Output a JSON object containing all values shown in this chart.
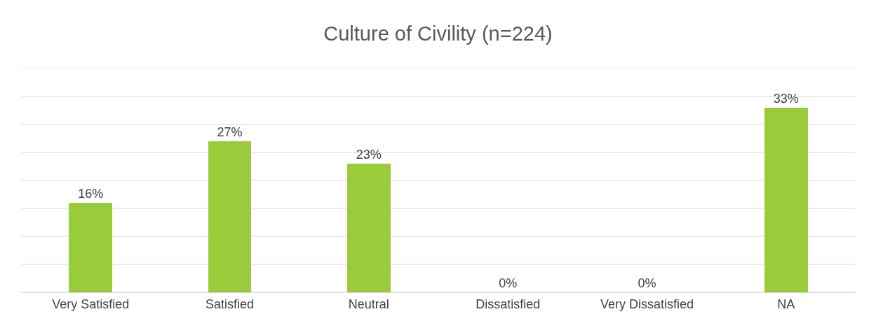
{
  "chart_data": {
    "type": "bar",
    "title": "Culture of Civility (n=224)",
    "categories": [
      "Very Satisfied",
      "Satisfied",
      "Neutral",
      "Dissatisfied",
      "Very Dissatisfied",
      "NA"
    ],
    "values": [
      16,
      27,
      23,
      0,
      0,
      33
    ],
    "value_labels": [
      "16%",
      "27%",
      "23%",
      "0%",
      "0%",
      "33%"
    ],
    "color": "#9acb3a",
    "ylim": [
      0,
      40
    ],
    "yticks": [
      {
        "value": 0,
        "label": null
      },
      {
        "value": 5,
        "label": null
      },
      {
        "value": 10,
        "label": null
      },
      {
        "value": 15,
        "label": null
      },
      {
        "value": 20,
        "label": null
      },
      {
        "value": 25,
        "label": null
      },
      {
        "value": 30,
        "label": null
      },
      {
        "value": 35,
        "label": null
      },
      {
        "value": 40,
        "label": null
      }
    ],
    "grid": "y",
    "tick_labels": "x"
  }
}
